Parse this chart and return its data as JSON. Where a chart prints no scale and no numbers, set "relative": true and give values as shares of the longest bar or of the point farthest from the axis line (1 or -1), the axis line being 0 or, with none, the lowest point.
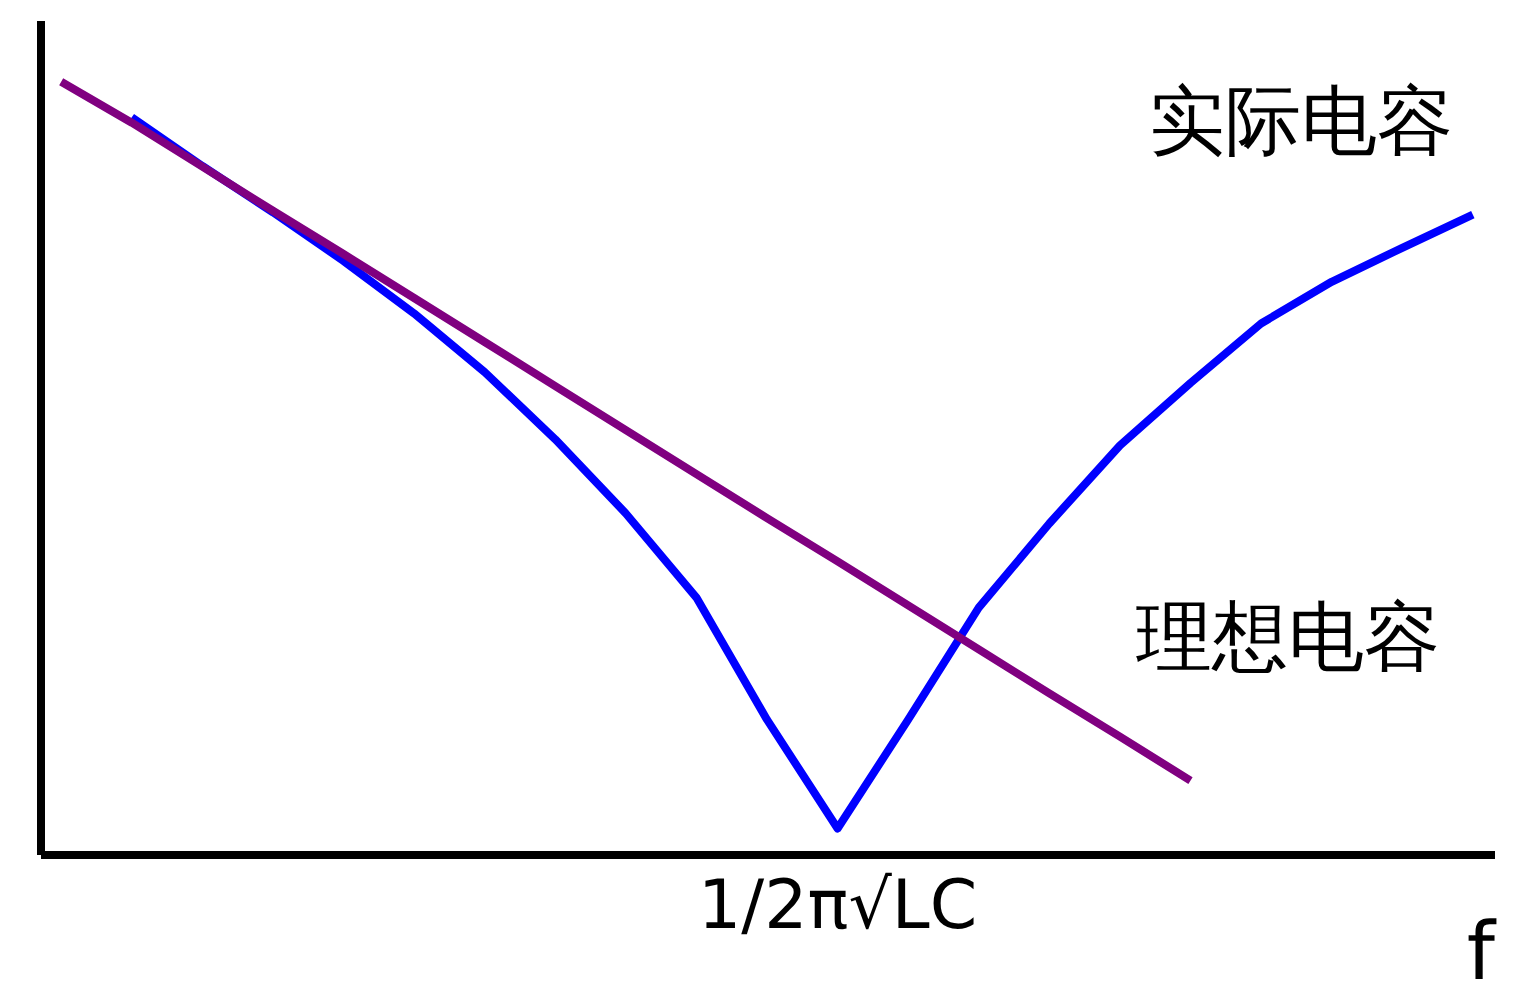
{
  "chart_data": {
    "type": "line",
    "relative": true,
    "xlabel": "f",
    "annotations": [
      "1/2π√LC"
    ],
    "legend": false,
    "grid": false,
    "marker": "none",
    "line_style": "solid",
    "categories": [
      null,
      null,
      null,
      null,
      null,
      null,
      null,
      null,
      null,
      null,
      null,
      null,
      null,
      null,
      null,
      null,
      null,
      null,
      null,
      null,
      null
    ],
    "series": [
      {
        "name": "实际电容",
        "color": "#0000ff",
        "values": [
          null,
          0.954,
          0.891,
          0.831,
          0.768,
          0.7,
          0.624,
          0.537,
          0.441,
          0.332,
          0.174,
          0.033,
          0.174,
          0.319,
          0.428,
          0.529,
          0.61,
          0.687,
          0.741,
          0.785,
          0.828
        ]
      },
      {
        "name": "理想电容",
        "color": "#800080",
        "values": [
          1.0,
          0.947,
          0.89,
          0.833,
          0.777,
          0.72,
          0.663,
          0.606,
          0.549,
          0.492,
          0.435,
          0.379,
          0.322,
          0.265,
          0.208,
          0.152,
          0.095,
          null,
          null,
          null,
          null
        ]
      }
    ]
  }
}
